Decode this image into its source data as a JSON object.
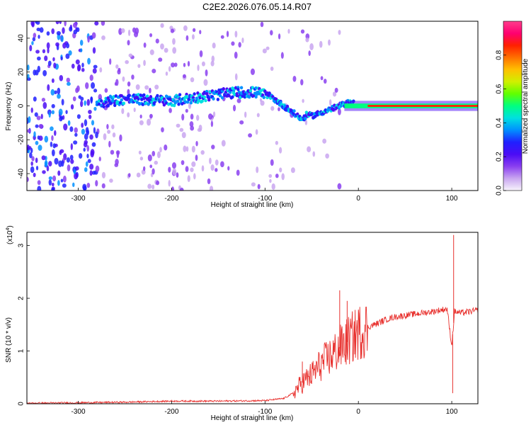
{
  "chart_data": [
    {
      "type": "heatmap",
      "title": "C2E2.2026.076.05.14.R07",
      "xlabel": "Height of straight line (km)",
      "ylabel": "Frequency (Hz)",
      "xlim": [
        -355,
        128
      ],
      "ylim": [
        -50,
        50
      ],
      "xticks": [
        -300,
        -200,
        -100,
        0,
        100
      ],
      "yticks": [
        -40,
        -20,
        0,
        20,
        40
      ],
      "colorbar": {
        "label": "Normalized spectral amplitude",
        "range": [
          0,
          1
        ],
        "ticks": [
          "0.0",
          "0.2",
          "0.4",
          "0.6",
          "0.8"
        ],
        "colors": [
          "#f8f4fc",
          "#c9a6f0",
          "#8a3ff0",
          "#4b0cf5",
          "#2020ff",
          "#0090ff",
          "#00e0e0",
          "#00ff80",
          "#60ff00",
          "#d0f000",
          "#ffc000",
          "#ff7000",
          "#ff2000",
          "#ff0070",
          "#ff3d8c"
        ]
      },
      "ridge": {
        "x": [
          -280,
          -250,
          -200,
          -160,
          -130,
          -110,
          -95,
          -85,
          -70,
          -60,
          -55,
          -50,
          -45,
          -40,
          -30,
          -20,
          -10,
          0,
          10,
          30,
          60,
          90,
          100,
          128
        ],
        "f": [
          2,
          4,
          3,
          6,
          8,
          8,
          6,
          2,
          -4,
          -8,
          -5,
          -6,
          -5,
          -4,
          -2,
          0,
          2,
          1,
          0,
          0,
          0,
          0,
          0,
          0
        ]
      }
    },
    {
      "type": "line",
      "xlabel": "Height of straight line (km)",
      "ylabel": "SNR (10 * v/v)",
      "exponent_label": "(x10",
      "exponent_power": "4",
      "exponent_close": ")",
      "xlim": [
        -355,
        128
      ],
      "ylim": [
        0,
        3.25
      ],
      "xticks": [
        -300,
        -200,
        -100,
        0,
        100
      ],
      "yticks": [
        0,
        1,
        2,
        3
      ],
      "color": "#e8312e",
      "series": [
        {
          "name": "SNR",
          "x": [
            -355,
            -300,
            -250,
            -200,
            -150,
            -100,
            -80,
            -70,
            -60,
            -50,
            -40,
            -30,
            -20,
            -10,
            0,
            10,
            20,
            30,
            40,
            60,
            80,
            95,
            100,
            103,
            110,
            128
          ],
          "y": [
            0.01,
            0.02,
            0.03,
            0.05,
            0.05,
            0.06,
            0.1,
            0.2,
            0.4,
            0.55,
            0.75,
            0.9,
            1.05,
            1.2,
            1.35,
            1.45,
            1.52,
            1.6,
            1.65,
            1.7,
            1.75,
            1.8,
            1.1,
            1.75,
            1.72,
            1.77
          ]
        }
      ],
      "spikes": [
        {
          "x": -20,
          "y": 2.15
        },
        {
          "x": -12,
          "y": 1.95
        },
        {
          "x": -27,
          "y": 1.2
        },
        {
          "x": -60,
          "y": 0.8
        },
        {
          "x": 102,
          "y": 3.2
        },
        {
          "x": 101,
          "y": 0.2
        }
      ]
    }
  ]
}
